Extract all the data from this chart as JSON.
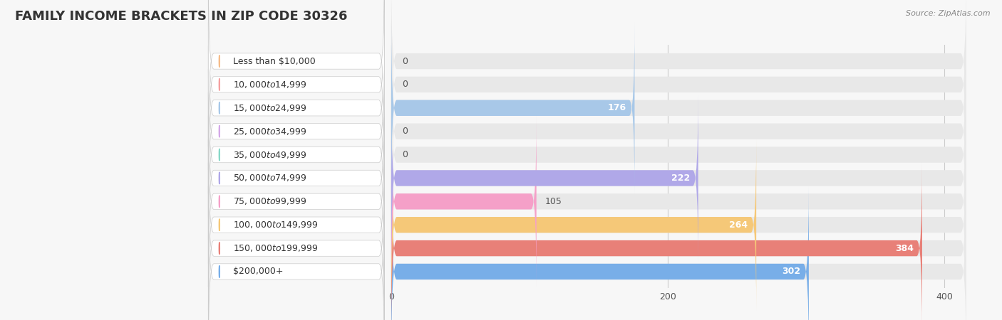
{
  "title": "FAMILY INCOME BRACKETS IN ZIP CODE 30326",
  "source": "Source: ZipAtlas.com",
  "categories": [
    "Less than $10,000",
    "$10,000 to $14,999",
    "$15,000 to $24,999",
    "$25,000 to $34,999",
    "$35,000 to $49,999",
    "$50,000 to $74,999",
    "$75,000 to $99,999",
    "$100,000 to $149,999",
    "$150,000 to $199,999",
    "$200,000+"
  ],
  "values": [
    0,
    0,
    176,
    0,
    0,
    222,
    105,
    264,
    384,
    302
  ],
  "bar_colors": [
    "#f5bc8a",
    "#f5a0a0",
    "#a8c8e8",
    "#d4a8e8",
    "#88d8c8",
    "#b0a8e8",
    "#f5a0c8",
    "#f5c878",
    "#e88078",
    "#78aee8"
  ],
  "background_color": "#f7f7f7",
  "bar_bg_color": "#e8e8e8",
  "label_bg_color": "#ffffff",
  "xlim_max": 420,
  "title_fontsize": 13,
  "label_fontsize": 9,
  "value_fontsize": 9,
  "value_inside_threshold": 150
}
